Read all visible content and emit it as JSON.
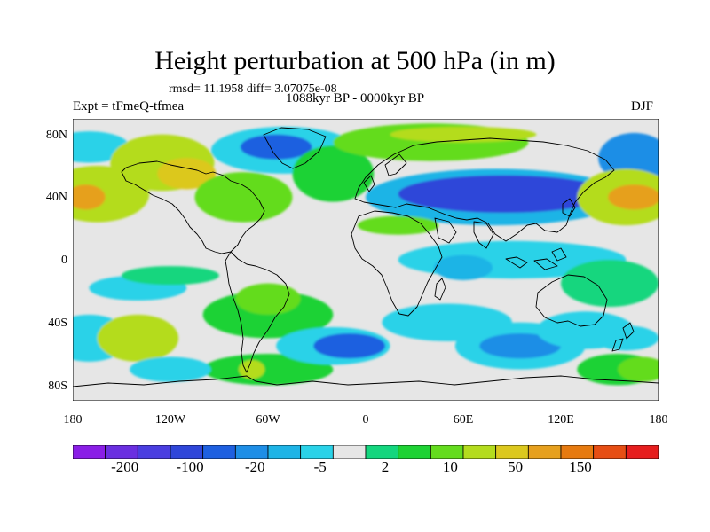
{
  "figure": {
    "title": "Height perturbation at 500 hPa (in m)",
    "stats_line": "rmsd= 11.1958 diff= 3.07075e-08",
    "period": "1088kyr BP - 0000kyr BP",
    "experiment": "Expt = tFmeQ-tfmea",
    "season": "DJF"
  },
  "axes": {
    "lat_labels": [
      "80N",
      "40N",
      "0",
      "40S",
      "80S"
    ],
    "lat_values": [
      80,
      40,
      0,
      -40,
      -80
    ],
    "lon_labels": [
      "180",
      "120W",
      "60W",
      "0",
      "60E",
      "120E",
      "180"
    ],
    "lon_values": [
      -180,
      -120,
      -60,
      0,
      60,
      120,
      180
    ]
  },
  "colorbar": {
    "levels": [
      -200,
      -100,
      -20,
      -5,
      2,
      10,
      50,
      150
    ],
    "tick_labels": [
      "-200",
      "-100",
      "-20",
      "-5",
      "2",
      "10",
      "50",
      "150"
    ],
    "colors": [
      "#8a1ee6",
      "#6a2fe0",
      "#4a3ee0",
      "#2f46d9",
      "#1e60e0",
      "#1e8ee6",
      "#1eb4e6",
      "#2ad2e8",
      "#e6e6e6",
      "#14d67e",
      "#1ed234",
      "#64dc1e",
      "#b4dc1e",
      "#dcc81e",
      "#e6a01e",
      "#e67a10",
      "#e64e14",
      "#e61e1e"
    ]
  },
  "anomaly_regions": [
    {
      "lon": -170,
      "lat": 72,
      "rlon": 25,
      "rlat": 10,
      "category": 7
    },
    {
      "lon": -125,
      "lat": 62,
      "rlon": 32,
      "rlat": 18,
      "category": 12
    },
    {
      "lon": -110,
      "lat": 55,
      "rlon": 18,
      "rlat": 10,
      "category": 13
    },
    {
      "lon": -165,
      "lat": 42,
      "rlon": 32,
      "rlat": 18,
      "category": 12
    },
    {
      "lon": -172,
      "lat": 40,
      "rlon": 12,
      "rlat": 8,
      "category": 14
    },
    {
      "lon": -50,
      "lat": 70,
      "rlon": 45,
      "rlat": 15,
      "category": 7
    },
    {
      "lon": -55,
      "lat": 72,
      "rlon": 22,
      "rlat": 8,
      "category": 4
    },
    {
      "lon": -75,
      "lat": 40,
      "rlon": 30,
      "rlat": 16,
      "category": 11
    },
    {
      "lon": -20,
      "lat": 55,
      "rlon": 25,
      "rlat": 18,
      "category": 10
    },
    {
      "lon": 40,
      "lat": 75,
      "rlon": 60,
      "rlat": 12,
      "category": 11
    },
    {
      "lon": 60,
      "lat": 80,
      "rlon": 45,
      "rlat": 5,
      "category": 12
    },
    {
      "lon": 80,
      "lat": 40,
      "rlon": 80,
      "rlat": 18,
      "category": 6
    },
    {
      "lon": 85,
      "lat": 42,
      "rlon": 65,
      "rlat": 12,
      "category": 3
    },
    {
      "lon": 165,
      "lat": 65,
      "rlon": 22,
      "rlat": 16,
      "category": 5
    },
    {
      "lon": 160,
      "lat": 40,
      "rlon": 30,
      "rlat": 18,
      "category": 12
    },
    {
      "lon": 165,
      "lat": 40,
      "rlon": 16,
      "rlat": 8,
      "category": 14
    },
    {
      "lon": 20,
      "lat": 22,
      "rlon": 25,
      "rlat": 6,
      "category": 11
    },
    {
      "lon": 90,
      "lat": 0,
      "rlon": 70,
      "rlat": 12,
      "category": 7
    },
    {
      "lon": 60,
      "lat": -5,
      "rlon": 18,
      "rlat": 8,
      "category": 6
    },
    {
      "lon": 150,
      "lat": -15,
      "rlon": 30,
      "rlat": 15,
      "category": 9
    },
    {
      "lon": -140,
      "lat": -18,
      "rlon": 30,
      "rlat": 8,
      "category": 7
    },
    {
      "lon": -170,
      "lat": -50,
      "rlon": 25,
      "rlat": 15,
      "category": 7
    },
    {
      "lon": -140,
      "lat": -50,
      "rlon": 25,
      "rlat": 15,
      "category": 12
    },
    {
      "lon": -60,
      "lat": -35,
      "rlon": 40,
      "rlat": 15,
      "category": 10
    },
    {
      "lon": -60,
      "lat": -25,
      "rlon": 20,
      "rlat": 10,
      "category": 11
    },
    {
      "lon": -60,
      "lat": -70,
      "rlon": 40,
      "rlat": 10,
      "category": 10
    },
    {
      "lon": -70,
      "lat": -70,
      "rlon": 8,
      "rlat": 6,
      "category": 12
    },
    {
      "lon": -20,
      "lat": -55,
      "rlon": 35,
      "rlat": 12,
      "category": 7
    },
    {
      "lon": -10,
      "lat": -55,
      "rlon": 22,
      "rlat": 8,
      "category": 4
    },
    {
      "lon": 50,
      "lat": -40,
      "rlon": 40,
      "rlat": 12,
      "category": 7
    },
    {
      "lon": 95,
      "lat": -55,
      "rlon": 40,
      "rlat": 15,
      "category": 7
    },
    {
      "lon": 95,
      "lat": -55,
      "rlon": 25,
      "rlat": 8,
      "category": 5
    },
    {
      "lon": 135,
      "lat": -45,
      "rlon": 30,
      "rlat": 12,
      "category": 7
    },
    {
      "lon": 155,
      "lat": -70,
      "rlon": 25,
      "rlat": 10,
      "category": 10
    },
    {
      "lon": -120,
      "lat": -70,
      "rlon": 25,
      "rlat": 8,
      "category": 7
    },
    {
      "lon": 160,
      "lat": -50,
      "rlon": 20,
      "rlat": 8,
      "category": 7
    },
    {
      "lon": 170,
      "lat": -70,
      "rlon": 15,
      "rlat": 8,
      "category": 11
    },
    {
      "lon": -120,
      "lat": -10,
      "rlon": 30,
      "rlat": 6,
      "category": 9
    }
  ]
}
